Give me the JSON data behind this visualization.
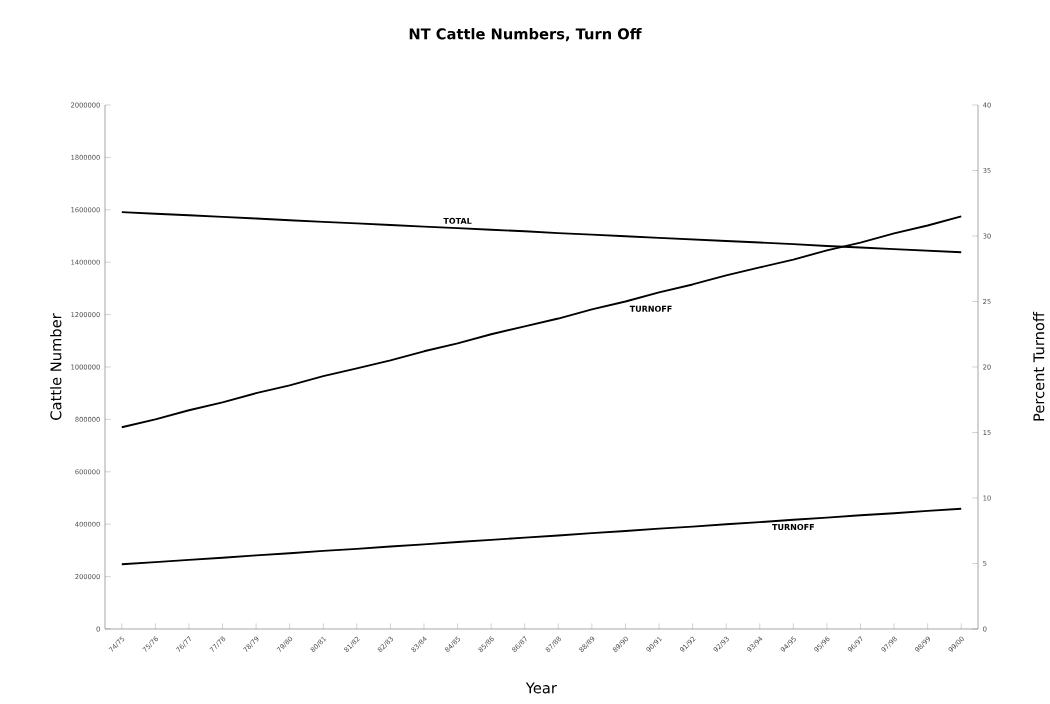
{
  "chart_data": {
    "type": "line",
    "title": "NT Cattle Numbers, Turn Off",
    "xlabel": "Year",
    "ylabel": "Cattle Number",
    "y2label": "Percent Turnoff",
    "categories": [
      "74/75",
      "75/76",
      "76/77",
      "77/78",
      "78/79",
      "79/80",
      "80/81",
      "81/82",
      "82/83",
      "83/84",
      "84/85",
      "85/86",
      "86/87",
      "87/88",
      "88/89",
      "89/90",
      "90/91",
      "91/92",
      "92/93",
      "93/94",
      "94/95",
      "95/96",
      "96/97",
      "97/98",
      "98/99",
      "99/00"
    ],
    "ylim": [
      0,
      2000000
    ],
    "yticks": [
      0,
      200000,
      400000,
      600000,
      800000,
      1000000,
      1200000,
      1400000,
      1600000,
      1800000,
      2000000
    ],
    "y2lim": [
      0,
      40
    ],
    "y2ticks": [
      0,
      5,
      10,
      15,
      20,
      25,
      30,
      35,
      40
    ],
    "marker": "none",
    "line_style": "solid",
    "series": [
      {
        "name": "TOTAL",
        "color": "#000000",
        "values": [
          1591000,
          1585000,
          1579000,
          1573000,
          1567000,
          1560000,
          1554000,
          1548000,
          1542000,
          1536000,
          1530000,
          1524000,
          1518000,
          1511000,
          1505000,
          1499000,
          1493000,
          1487000,
          1481000,
          1475000,
          1469000,
          1462000,
          1456000,
          1450000,
          1444000,
          1438000
        ]
      },
      {
        "name": "TURNOFF",
        "color": "#000000",
        "axis": "y2",
        "values": [
          15.4,
          16.0,
          16.7,
          17.3,
          18.0,
          18.6,
          19.3,
          19.9,
          20.5,
          21.2,
          21.8,
          22.5,
          23.1,
          23.7,
          24.4,
          25.0,
          25.7,
          26.3,
          27.0,
          27.6,
          28.2,
          28.9,
          29.5,
          30.2,
          30.8,
          31.5
        ]
      },
      {
        "name": "TURNOFF",
        "color": "#000000",
        "values": [
          247000,
          255000,
          264000,
          272000,
          281000,
          289000,
          298000,
          306000,
          315000,
          323000,
          332000,
          340000,
          349000,
          357000,
          366000,
          374000,
          383000,
          391000,
          400000,
          408000,
          417000,
          425000,
          434000,
          442000,
          451000,
          459000
        ]
      }
    ]
  }
}
